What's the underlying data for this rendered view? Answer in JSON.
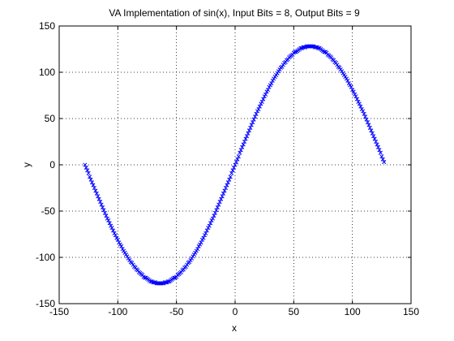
{
  "chart_data": {
    "type": "scatter",
    "title": "VA Implementation of sin(x), Input Bits = 8, Output Bits = 9",
    "xlabel": "x",
    "ylabel": "y",
    "xlim": [
      -150,
      150
    ],
    "ylim": [
      -150,
      150
    ],
    "xticks": [
      -150,
      -100,
      -50,
      0,
      50,
      100,
      150
    ],
    "yticks": [
      -150,
      -100,
      -50,
      0,
      50,
      100,
      150
    ],
    "xtick_labels": [
      "-150",
      "-100",
      "-50",
      "0",
      "50",
      "100",
      "150"
    ],
    "ytick_labels": [
      "-150",
      "-100",
      "-50",
      "0",
      "50",
      "100",
      "150"
    ],
    "grid": true,
    "series": [
      {
        "marker": "x",
        "color": "#0000ff",
        "x_range": [
          -128,
          127
        ],
        "x_step": 1,
        "amplitude": 128,
        "period": 256
      }
    ]
  }
}
